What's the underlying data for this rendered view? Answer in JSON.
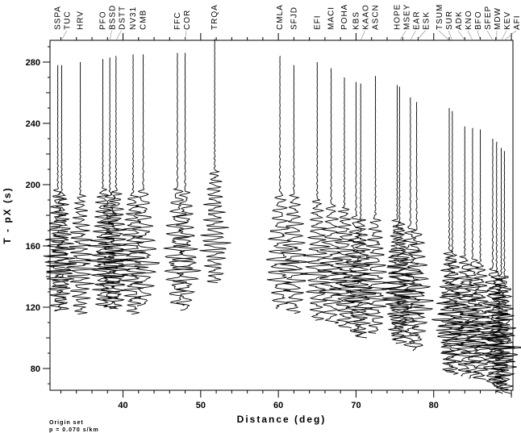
{
  "chart_data": {
    "type": "line",
    "title": "",
    "xlabel": "Distance (deg)",
    "ylabel": "T - pX (s)",
    "xlim": [
      30.6,
      90.2
    ],
    "ylim": [
      65.8,
      294.2
    ],
    "xticks": [
      40,
      50,
      60,
      70,
      80
    ],
    "yticks": [
      80,
      120,
      160,
      200,
      240,
      280
    ],
    "grid": false,
    "annotations": [
      "Origin set",
      "p = 0.070 s/km"
    ],
    "stations": [
      {
        "name": "SSPA",
        "dist": 31.6,
        "t0": 278,
        "arr": 152
      },
      {
        "name": "TUC",
        "dist": 32.1,
        "t0": 278,
        "arr": 150
      },
      {
        "name": "HRV",
        "dist": 34.5,
        "t0": 280,
        "arr": 148
      },
      {
        "name": "PFO",
        "dist": 37.4,
        "t0": 282,
        "arr": 152
      },
      {
        "name": "BSSD",
        "dist": 38.3,
        "t0": 283,
        "arr": 150
      },
      {
        "name": "DSTT",
        "dist": 39.1,
        "t0": 284,
        "arr": 152
      },
      {
        "name": "NV31",
        "dist": 41.3,
        "t0": 285,
        "arr": 150
      },
      {
        "name": "CMB",
        "dist": 42.6,
        "t0": 285,
        "arr": 152
      },
      {
        "name": "FFC",
        "dist": 47.0,
        "t0": 286,
        "arr": 152
      },
      {
        "name": "COR",
        "dist": 48.0,
        "t0": 286,
        "arr": 150
      },
      {
        "name": "TRQA",
        "dist": 51.8,
        "t0": 295,
        "arr": 165
      },
      {
        "name": "CMLA",
        "dist": 60.2,
        "t0": 284,
        "arr": 150
      },
      {
        "name": "SFJD",
        "dist": 62.0,
        "t0": 278,
        "arr": 148
      },
      {
        "name": "EFI",
        "dist": 65.0,
        "t0": 280,
        "arr": 145
      },
      {
        "name": "MACI",
        "dist": 66.8,
        "t0": 276,
        "arr": 142
      },
      {
        "name": "POHA",
        "dist": 68.5,
        "t0": 270,
        "arr": 140
      },
      {
        "name": "KBS",
        "dist": 70.0,
        "t0": 267,
        "arr": 135
      },
      {
        "name": "KAAO",
        "dist": 70.6,
        "t0": 266,
        "arr": 132
      },
      {
        "name": "ASCN",
        "dist": 72.5,
        "t0": 271,
        "arr": 135
      },
      {
        "name": "HOPE",
        "dist": 75.3,
        "t0": 265,
        "arr": 132
      },
      {
        "name": "MSEY",
        "dist": 75.6,
        "t0": 264,
        "arr": 130
      },
      {
        "name": "EAR",
        "dist": 77.0,
        "t0": 257,
        "arr": 128
      },
      {
        "name": "ESK",
        "dist": 77.8,
        "t0": 254,
        "arr": 125
      },
      {
        "name": "TSUM",
        "dist": 82.0,
        "t0": 250,
        "arr": 112
      },
      {
        "name": "SUR",
        "dist": 82.4,
        "t0": 248,
        "arr": 110
      },
      {
        "name": "ADK",
        "dist": 84.0,
        "t0": 238,
        "arr": 108
      },
      {
        "name": "KNO",
        "dist": 85.0,
        "t0": 237,
        "arr": 106
      },
      {
        "name": "BFO",
        "dist": 86.0,
        "t0": 236,
        "arr": 104
      },
      {
        "name": "SFEP",
        "dist": 87.6,
        "t0": 230,
        "arr": 100
      },
      {
        "name": "MDW",
        "dist": 88.1,
        "t0": 228,
        "arr": 98
      },
      {
        "name": "KEV",
        "dist": 88.7,
        "t0": 224,
        "arr": 96
      },
      {
        "name": "AFI",
        "dist": 89.1,
        "t0": 222,
        "arr": 95
      }
    ]
  }
}
